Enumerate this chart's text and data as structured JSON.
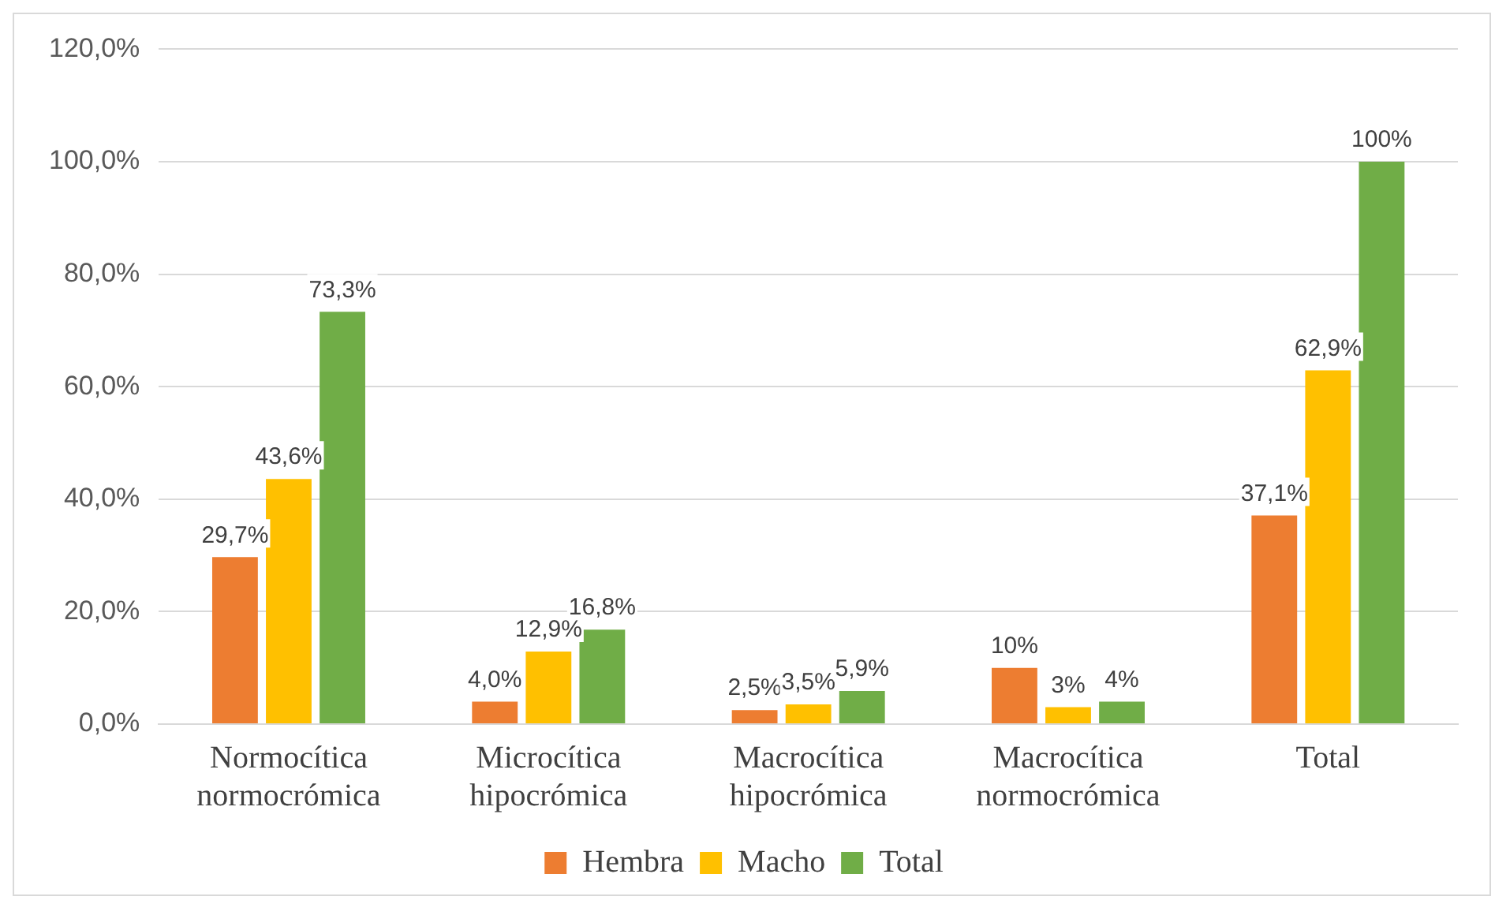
{
  "chart_data": {
    "type": "bar",
    "categories": [
      "Normocítica normocrómica",
      "Microcítica hipocrómica",
      "Macrocítica hipocrómica",
      "Macrocítica normocrómica",
      "Total"
    ],
    "series": [
      {
        "name": "Hembra",
        "color": "#ed7d31",
        "values": [
          29.7,
          4.0,
          2.5,
          10,
          37.1
        ],
        "value_labels": [
          "29,7%",
          "4,0%",
          "2,5%",
          "10%",
          "37,1%"
        ]
      },
      {
        "name": "Macho",
        "color": "#ffc000",
        "values": [
          43.6,
          12.9,
          3.5,
          3,
          62.9
        ],
        "value_labels": [
          "43,6%",
          "12,9%",
          "3,5%",
          "3%",
          "62,9%"
        ]
      },
      {
        "name": "Total",
        "color": "#70ad47",
        "values": [
          73.3,
          16.8,
          5.9,
          4,
          100
        ],
        "value_labels": [
          "73,3%",
          "16,8%",
          "5,9%",
          "4%",
          "100%"
        ]
      }
    ],
    "ylim": [
      0,
      120
    ],
    "yticks": [
      {
        "value": 0,
        "label": "0,0%"
      },
      {
        "value": 20,
        "label": "20,0%"
      },
      {
        "value": 40,
        "label": "40,0%"
      },
      {
        "value": 60,
        "label": "60,0%"
      },
      {
        "value": 80,
        "label": "80,0%"
      },
      {
        "value": 100,
        "label": "100,0%"
      },
      {
        "value": 120,
        "label": "120,0%"
      }
    ],
    "grid": "y",
    "legend": "bottom"
  }
}
